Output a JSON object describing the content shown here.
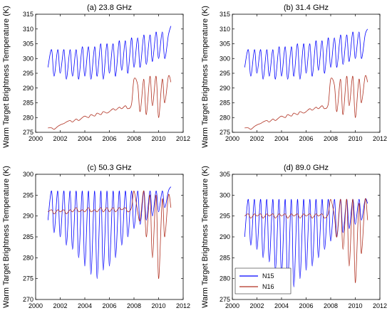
{
  "figure": {
    "ylabel": "Warm Target Brightness Temperature (K)",
    "legend": {
      "placement": "lower-left",
      "entries": [
        {
          "name": "N15",
          "color": "#0000ff"
        },
        {
          "name": "N16",
          "color": "#b03020"
        }
      ]
    }
  },
  "chart_data": [
    {
      "type": "line",
      "title": "(a) 23.8 GHz",
      "xlabel": "",
      "ylabel": "Warm Target Brightness Temperature (K)",
      "xlim": [
        2000,
        2012
      ],
      "ylim": [
        275,
        315
      ],
      "xticks": [
        "2000",
        "2002",
        "2004",
        "2006",
        "2008",
        "2010",
        "2012"
      ],
      "yticks": [
        "275",
        "280",
        "285",
        "290",
        "295",
        "300",
        "305",
        "310",
        "315"
      ],
      "grid": false,
      "series": [
        {
          "name": "N15",
          "color": "#0000ff",
          "x": [
            2001.0,
            2001.3,
            2001.5,
            2001.8,
            2002.0,
            2002.3,
            2002.5,
            2002.8,
            2003.0,
            2003.3,
            2003.5,
            2003.8,
            2004.0,
            2004.3,
            2004.5,
            2004.8,
            2005.0,
            2005.3,
            2005.5,
            2005.8,
            2006.0,
            2006.3,
            2006.5,
            2006.8,
            2007.0,
            2007.3,
            2007.5,
            2007.8,
            2008.0,
            2008.3,
            2008.5,
            2008.8,
            2009.0,
            2009.3,
            2009.5,
            2009.8,
            2010.0,
            2010.3,
            2010.5,
            2010.8,
            2011.0
          ],
          "y": [
            297,
            303,
            294,
            303,
            295,
            303,
            293,
            303,
            294,
            303,
            293,
            304,
            294,
            304,
            293,
            304,
            294,
            305,
            293,
            305,
            295,
            305,
            294,
            306,
            296,
            306,
            295,
            307,
            297,
            307,
            297,
            308,
            298,
            308,
            299,
            309,
            300,
            309,
            300,
            308,
            311
          ]
        },
        {
          "name": "N16",
          "color": "#b03020",
          "x": [
            2001.0,
            2001.3,
            2001.5,
            2001.8,
            2002.0,
            2002.3,
            2002.5,
            2002.8,
            2003.0,
            2003.3,
            2003.5,
            2003.8,
            2004.0,
            2004.3,
            2004.5,
            2004.8,
            2005.0,
            2005.3,
            2005.5,
            2005.8,
            2006.0,
            2006.3,
            2006.5,
            2006.8,
            2007.0,
            2007.3,
            2007.5,
            2007.8,
            2008.0,
            2008.3,
            2008.5,
            2008.8,
            2009.0,
            2009.3,
            2009.5,
            2009.8,
            2010.0,
            2010.3,
            2010.5,
            2010.8,
            2011.0
          ],
          "y": [
            276.5,
            276.5,
            276.0,
            277.0,
            277.5,
            278.0,
            278.5,
            279.0,
            278.5,
            279.5,
            279.0,
            280.0,
            280.5,
            280.0,
            281.0,
            280.5,
            281.5,
            281.0,
            282.0,
            281.5,
            282.0,
            283.0,
            282.5,
            283.5,
            283.0,
            284.0,
            283.0,
            284.5,
            293,
            291,
            282,
            293,
            281,
            294,
            284,
            294,
            280,
            293,
            285,
            294,
            292
          ]
        }
      ]
    },
    {
      "type": "line",
      "title": "(b) 31.4 GHz",
      "xlabel": "",
      "ylabel": "Warm Target Brightness Temperature (K)",
      "xlim": [
        2000,
        2012
      ],
      "ylim": [
        275,
        315
      ],
      "xticks": [
        "2000",
        "2002",
        "2004",
        "2006",
        "2008",
        "2010",
        "2012"
      ],
      "yticks": [
        "275",
        "280",
        "285",
        "290",
        "295",
        "300",
        "305",
        "310",
        "315"
      ],
      "grid": false,
      "series": [
        {
          "name": "N15",
          "color": "#0000ff",
          "x": [
            2001.0,
            2001.3,
            2001.5,
            2001.8,
            2002.0,
            2002.3,
            2002.5,
            2002.8,
            2003.0,
            2003.3,
            2003.5,
            2003.8,
            2004.0,
            2004.3,
            2004.5,
            2004.8,
            2005.0,
            2005.3,
            2005.5,
            2005.8,
            2006.0,
            2006.3,
            2006.5,
            2006.8,
            2007.0,
            2007.3,
            2007.5,
            2007.8,
            2008.0,
            2008.3,
            2008.5,
            2008.8,
            2009.0,
            2009.3,
            2009.5,
            2009.8,
            2010.0,
            2010.3,
            2010.5,
            2010.8,
            2011.0
          ],
          "y": [
            297,
            303,
            294,
            303,
            295,
            303,
            293,
            303,
            294,
            303,
            293,
            304,
            294,
            304,
            293,
            304,
            294,
            305,
            293,
            305,
            295,
            305,
            294,
            306,
            296,
            306,
            295,
            307,
            297,
            307,
            297,
            308,
            298,
            308,
            299,
            309,
            300,
            309,
            300,
            308,
            310
          ]
        },
        {
          "name": "N16",
          "color": "#b03020",
          "x": [
            2001.0,
            2001.3,
            2001.5,
            2001.8,
            2002.0,
            2002.3,
            2002.5,
            2002.8,
            2003.0,
            2003.3,
            2003.5,
            2003.8,
            2004.0,
            2004.3,
            2004.5,
            2004.8,
            2005.0,
            2005.3,
            2005.5,
            2005.8,
            2006.0,
            2006.3,
            2006.5,
            2006.8,
            2007.0,
            2007.3,
            2007.5,
            2007.8,
            2008.0,
            2008.3,
            2008.5,
            2008.8,
            2009.0,
            2009.3,
            2009.5,
            2009.8,
            2010.0,
            2010.3,
            2010.5,
            2010.8,
            2011.0
          ],
          "y": [
            276.5,
            276.5,
            276.0,
            277.0,
            277.5,
            278.0,
            278.5,
            279.0,
            278.5,
            279.5,
            279.0,
            280.0,
            280.5,
            280.0,
            281.0,
            280.5,
            281.5,
            281.0,
            282.0,
            281.5,
            282.0,
            283.0,
            282.5,
            283.5,
            283.0,
            284.0,
            283.0,
            284.5,
            293,
            291,
            282,
            293,
            281,
            294,
            284,
            294,
            280,
            293,
            285,
            294,
            292
          ]
        }
      ]
    },
    {
      "type": "line",
      "title": "(c) 50.3 GHz",
      "xlabel": "",
      "ylabel": "Warm Target Brightness Temperature (K)",
      "xlim": [
        2000,
        2012
      ],
      "ylim": [
        270,
        300
      ],
      "xticks": [
        "2000",
        "2002",
        "2004",
        "2006",
        "2008",
        "2010",
        "2012"
      ],
      "yticks": [
        "270",
        "275",
        "280",
        "285",
        "290",
        "295",
        "300"
      ],
      "grid": false,
      "series": [
        {
          "name": "N15",
          "color": "#0000ff",
          "x": [
            2001.0,
            2001.3,
            2001.5,
            2001.8,
            2002.0,
            2002.3,
            2002.5,
            2002.8,
            2003.0,
            2003.3,
            2003.5,
            2003.8,
            2004.0,
            2004.3,
            2004.5,
            2004.8,
            2005.0,
            2005.3,
            2005.5,
            2005.8,
            2006.0,
            2006.3,
            2006.5,
            2006.8,
            2007.0,
            2007.3,
            2007.5,
            2007.8,
            2008.0,
            2008.3,
            2008.5,
            2008.8,
            2009.0,
            2009.3,
            2009.5,
            2009.8,
            2010.0,
            2010.3,
            2010.5,
            2010.8,
            2011.0
          ],
          "y": [
            289,
            296,
            286,
            296,
            285,
            296,
            283,
            296,
            282,
            296,
            280,
            296,
            278,
            296,
            276,
            296,
            275,
            296,
            277,
            296,
            278,
            296,
            280,
            296,
            283,
            296,
            285,
            296,
            287,
            296,
            288,
            296,
            289,
            296,
            290,
            296,
            291,
            296,
            292,
            296,
            297
          ]
        },
        {
          "name": "N16",
          "color": "#b03020",
          "x": [
            2001.0,
            2001.3,
            2001.5,
            2001.8,
            2002.0,
            2002.3,
            2002.5,
            2002.8,
            2003.0,
            2003.3,
            2003.5,
            2003.8,
            2004.0,
            2004.3,
            2004.5,
            2004.8,
            2005.0,
            2005.3,
            2005.5,
            2005.8,
            2006.0,
            2006.3,
            2006.5,
            2006.8,
            2007.0,
            2007.3,
            2007.5,
            2007.8,
            2008.0,
            2008.3,
            2008.5,
            2008.8,
            2009.0,
            2009.3,
            2009.5,
            2009.8,
            2010.0,
            2010.3,
            2010.5,
            2010.8,
            2011.0
          ],
          "y": [
            291,
            291.5,
            290.5,
            291.5,
            291,
            291.5,
            290.5,
            291.5,
            291,
            292,
            291,
            291.5,
            291,
            292,
            291,
            291.5,
            291,
            292,
            291,
            292,
            291,
            292,
            291,
            292,
            291.5,
            292,
            291,
            292,
            296,
            291,
            289,
            296,
            285,
            295,
            280,
            295,
            275,
            294,
            285,
            295,
            292
          ]
        }
      ]
    },
    {
      "type": "line",
      "title": "(d) 89.0 GHz",
      "xlabel": "",
      "ylabel": "Warm Target Brightness Temperature (K)",
      "xlim": [
        2000,
        2012
      ],
      "ylim": [
        275,
        305
      ],
      "xticks": [
        "2000",
        "2002",
        "2004",
        "2006",
        "2008",
        "2010",
        "2012"
      ],
      "yticks": [
        "275",
        "280",
        "285",
        "290",
        "295",
        "300",
        "305"
      ],
      "grid": false,
      "series": [
        {
          "name": "N15",
          "color": "#0000ff",
          "x": [
            2001.0,
            2001.3,
            2001.5,
            2001.8,
            2002.0,
            2002.3,
            2002.5,
            2002.8,
            2003.0,
            2003.3,
            2003.5,
            2003.8,
            2004.0,
            2004.3,
            2004.5,
            2004.8,
            2005.0,
            2005.3,
            2005.5,
            2005.8,
            2006.0,
            2006.3,
            2006.5,
            2006.8,
            2007.0,
            2007.3,
            2007.5,
            2007.8,
            2008.0,
            2008.3,
            2008.5,
            2008.8,
            2009.0,
            2009.3,
            2009.5,
            2009.8,
            2010.0,
            2010.3,
            2010.5,
            2010.8,
            2011.0
          ],
          "y": [
            290,
            299,
            288,
            299,
            287,
            299,
            285,
            299,
            284,
            299,
            282,
            299,
            281,
            299,
            279,
            299,
            278,
            299,
            280,
            299,
            282,
            299,
            283,
            299,
            285,
            299,
            287,
            299,
            289,
            299,
            290,
            299,
            291,
            299,
            292,
            299,
            293,
            299,
            294,
            299,
            298
          ]
        },
        {
          "name": "N16",
          "color": "#b03020",
          "x": [
            2001.0,
            2001.3,
            2001.5,
            2001.8,
            2002.0,
            2002.3,
            2002.5,
            2002.8,
            2003.0,
            2003.3,
            2003.5,
            2003.8,
            2004.0,
            2004.3,
            2004.5,
            2004.8,
            2005.0,
            2005.3,
            2005.5,
            2005.8,
            2006.0,
            2006.3,
            2006.5,
            2006.8,
            2007.0,
            2007.3,
            2007.5,
            2007.8,
            2008.0,
            2008.3,
            2008.5,
            2008.8,
            2009.0,
            2009.3,
            2009.5,
            2009.8,
            2010.0,
            2010.3,
            2010.5,
            2010.8,
            2011.0
          ],
          "y": [
            295,
            295.5,
            294.5,
            295.5,
            295,
            295.5,
            294.5,
            295.5,
            295,
            295.5,
            294.5,
            295.5,
            295,
            295.5,
            294.5,
            295.5,
            295,
            295.5,
            294.5,
            295.5,
            295,
            295.5,
            294.5,
            295.5,
            295,
            295.5,
            294.5,
            295.5,
            299,
            295,
            290,
            299,
            287,
            299,
            283,
            299,
            279,
            298,
            286,
            299,
            294
          ]
        }
      ]
    }
  ]
}
